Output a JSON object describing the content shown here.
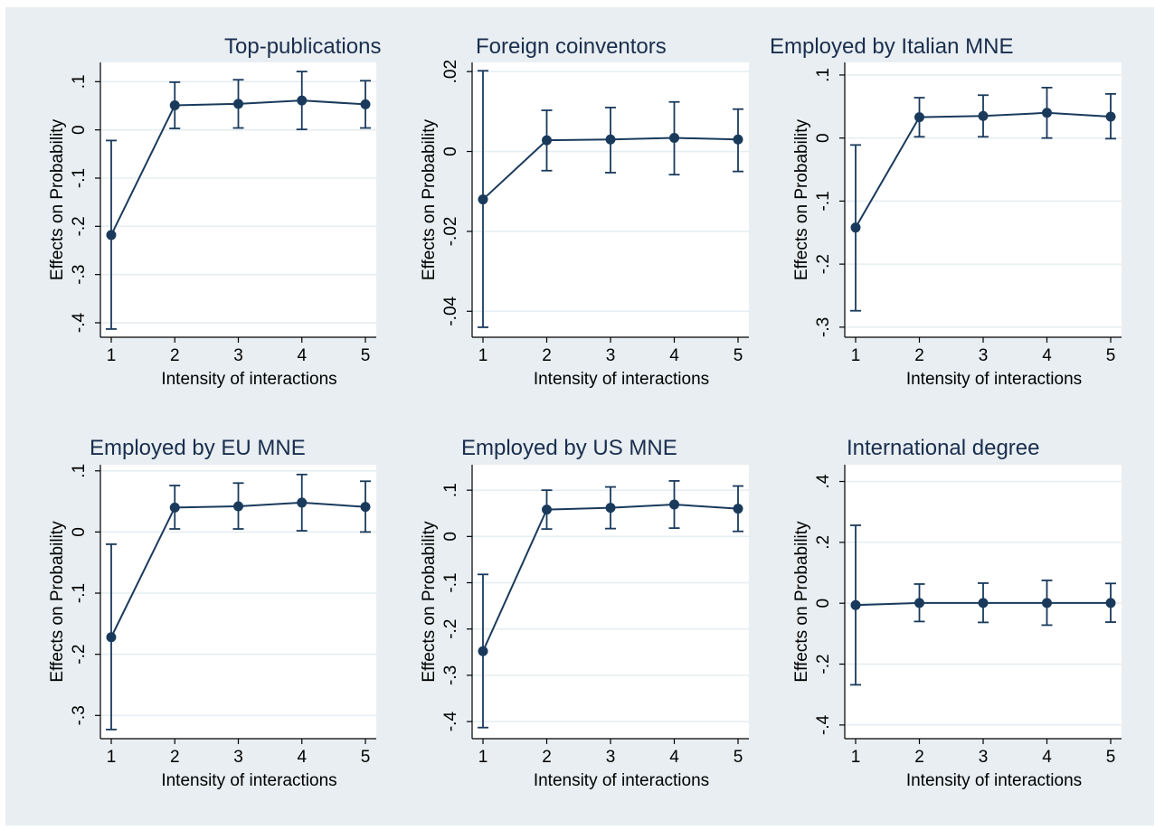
{
  "chart_data": [
    {
      "type": "line",
      "title": "Top-publications",
      "xlabel": "Intensity of interactions",
      "ylabel": "Effects on Probability",
      "x": [
        1,
        2,
        3,
        4,
        5
      ],
      "xticks": [
        "1",
        "2",
        "3",
        "4",
        "5"
      ],
      "ylim": [
        -0.43,
        0.14
      ],
      "yticks": [
        {
          "value": 0.1,
          "label": ".1"
        },
        {
          "value": 0,
          "label": "0"
        },
        {
          "value": -0.1,
          "label": "-.1"
        },
        {
          "value": -0.2,
          "label": "-.2"
        },
        {
          "value": -0.3,
          "label": "-.3"
        },
        {
          "value": -0.4,
          "label": "-.4"
        }
      ],
      "series": [
        {
          "values": [
            -0.218,
            0.051,
            0.054,
            0.061,
            0.053
          ],
          "ci_lower": [
            -0.413,
            0.003,
            0.004,
            0.001,
            0.004
          ],
          "ci_upper": [
            -0.022,
            0.099,
            0.104,
            0.121,
            0.102
          ]
        }
      ],
      "grid": true,
      "color": "#1a3a5c"
    },
    {
      "type": "line",
      "title": "Foreign coinventors",
      "xlabel": "Intensity of interactions",
      "ylabel": "Effects on Probability",
      "x": [
        1,
        2,
        3,
        4,
        5
      ],
      "xticks": [
        "1",
        "2",
        "3",
        "4",
        "5"
      ],
      "ylim": [
        -0.0465,
        0.0223
      ],
      "yticks": [
        {
          "value": 0.02,
          "label": ".02"
        },
        {
          "value": 0,
          "label": "0"
        },
        {
          "value": -0.02,
          "label": "-.02"
        },
        {
          "value": -0.04,
          "label": "-.04"
        }
      ],
      "series": [
        {
          "values": [
            -0.012,
            0.0028,
            0.003,
            0.0034,
            0.003
          ],
          "ci_lower": [
            -0.044,
            -0.0048,
            -0.0053,
            -0.0058,
            -0.005
          ],
          "ci_upper": [
            0.0202,
            0.0103,
            0.011,
            0.0124,
            0.0106
          ]
        }
      ],
      "grid": true,
      "color": "#1a3a5c"
    },
    {
      "type": "line",
      "title": "Employed by Italian MNE",
      "xlabel": "Intensity of interactions",
      "ylabel": "Effects on Probability",
      "x": [
        1,
        2,
        3,
        4,
        5
      ],
      "xticks": [
        "1",
        "2",
        "3",
        "4",
        "5"
      ],
      "ylim": [
        -0.316,
        0.12
      ],
      "yticks": [
        {
          "value": 0.1,
          "label": ".1"
        },
        {
          "value": 0,
          "label": "0"
        },
        {
          "value": -0.1,
          "label": "-.1"
        },
        {
          "value": -0.2,
          "label": "-.2"
        },
        {
          "value": -0.3,
          "label": "-.3"
        }
      ],
      "series": [
        {
          "values": [
            -0.142,
            0.033,
            0.035,
            0.04,
            0.034
          ],
          "ci_lower": [
            -0.274,
            0.002,
            0.002,
            0.0,
            -0.001
          ],
          "ci_upper": [
            -0.011,
            0.064,
            0.068,
            0.08,
            0.07
          ]
        }
      ],
      "grid": true,
      "color": "#1a3a5c"
    },
    {
      "type": "line",
      "title": "Employed by EU MNE",
      "xlabel": "Intensity of interactions",
      "ylabel": "Effects on Probability",
      "x": [
        1,
        2,
        3,
        4,
        5
      ],
      "xticks": [
        "1",
        "2",
        "3",
        "4",
        "5"
      ],
      "ylim": [
        -0.338,
        0.11
      ],
      "yticks": [
        {
          "value": 0.1,
          "label": ".1"
        },
        {
          "value": 0,
          "label": "0"
        },
        {
          "value": -0.1,
          "label": "-.1"
        },
        {
          "value": -0.2,
          "label": "-.2"
        },
        {
          "value": -0.3,
          "label": "-.3"
        }
      ],
      "series": [
        {
          "values": [
            -0.172,
            0.04,
            0.042,
            0.048,
            0.041
          ],
          "ci_lower": [
            -0.323,
            0.005,
            0.005,
            0.002,
            0.0
          ],
          "ci_upper": [
            -0.02,
            0.076,
            0.08,
            0.094,
            0.083
          ]
        }
      ],
      "grid": true,
      "color": "#1a3a5c"
    },
    {
      "type": "line",
      "title": "Employed by US MNE",
      "xlabel": "Intensity of interactions",
      "ylabel": "Effects on Probability",
      "x": [
        1,
        2,
        3,
        4,
        5
      ],
      "xticks": [
        "1",
        "2",
        "3",
        "4",
        "5"
      ],
      "ylim": [
        -0.437,
        0.155
      ],
      "yticks": [
        {
          "value": 0.1,
          "label": ".1"
        },
        {
          "value": 0,
          "label": "0"
        },
        {
          "value": -0.1,
          "label": "-.1"
        },
        {
          "value": -0.2,
          "label": "-.2"
        },
        {
          "value": -0.3,
          "label": "-.3"
        },
        {
          "value": -0.4,
          "label": "-.4"
        }
      ],
      "series": [
        {
          "values": [
            -0.248,
            0.058,
            0.062,
            0.069,
            0.06
          ],
          "ci_lower": [
            -0.413,
            0.016,
            0.017,
            0.018,
            0.011
          ],
          "ci_upper": [
            -0.082,
            0.1,
            0.107,
            0.12,
            0.109
          ]
        }
      ],
      "grid": true,
      "color": "#1a3a5c"
    },
    {
      "type": "line",
      "title": "International degree",
      "xlabel": "Intensity of interactions",
      "ylabel": "Effects on Probability",
      "x": [
        1,
        2,
        3,
        4,
        5
      ],
      "xticks": [
        "1",
        "2",
        "3",
        "4",
        "5"
      ],
      "ylim": [
        -0.445,
        0.455
      ],
      "yticks": [
        {
          "value": 0.4,
          "label": ".4"
        },
        {
          "value": 0.2,
          "label": ".2"
        },
        {
          "value": 0,
          "label": "0"
        },
        {
          "value": -0.2,
          "label": "-.2"
        },
        {
          "value": -0.4,
          "label": "-.4"
        }
      ],
      "series": [
        {
          "values": [
            -0.006,
            0.001,
            0.001,
            0.001,
            0.001
          ],
          "ci_lower": [
            -0.268,
            -0.06,
            -0.063,
            -0.072,
            -0.062
          ],
          "ci_upper": [
            0.256,
            0.063,
            0.066,
            0.075,
            0.065
          ]
        }
      ],
      "grid": true,
      "color": "#1a3a5c"
    }
  ]
}
